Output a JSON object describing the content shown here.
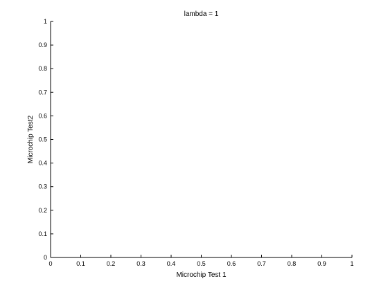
{
  "chart_data": {
    "type": "scatter",
    "title": "lambda = 1",
    "xlabel": "Microchip Test 1",
    "ylabel": "Microchip Test2",
    "xlim": [
      0,
      1
    ],
    "ylim": [
      0,
      1
    ],
    "x_ticks": [
      0,
      0.1,
      0.2,
      0.3,
      0.4,
      0.5,
      0.6,
      0.7,
      0.8,
      0.9,
      1
    ],
    "x_tick_labels": [
      "0",
      "0.1",
      "0.2",
      "0.3",
      "0.4",
      "0.5",
      "0.6",
      "0.7",
      "0.8",
      "0.9",
      "1"
    ],
    "y_ticks": [
      0,
      0.1,
      0.2,
      0.3,
      0.4,
      0.5,
      0.6,
      0.7,
      0.8,
      0.9,
      1
    ],
    "y_tick_labels": [
      "0",
      "0.1",
      "0.2",
      "0.3",
      "0.4",
      "0.5",
      "0.6",
      "0.7",
      "0.8",
      "0.9",
      "1"
    ],
    "grid": false,
    "series": []
  }
}
